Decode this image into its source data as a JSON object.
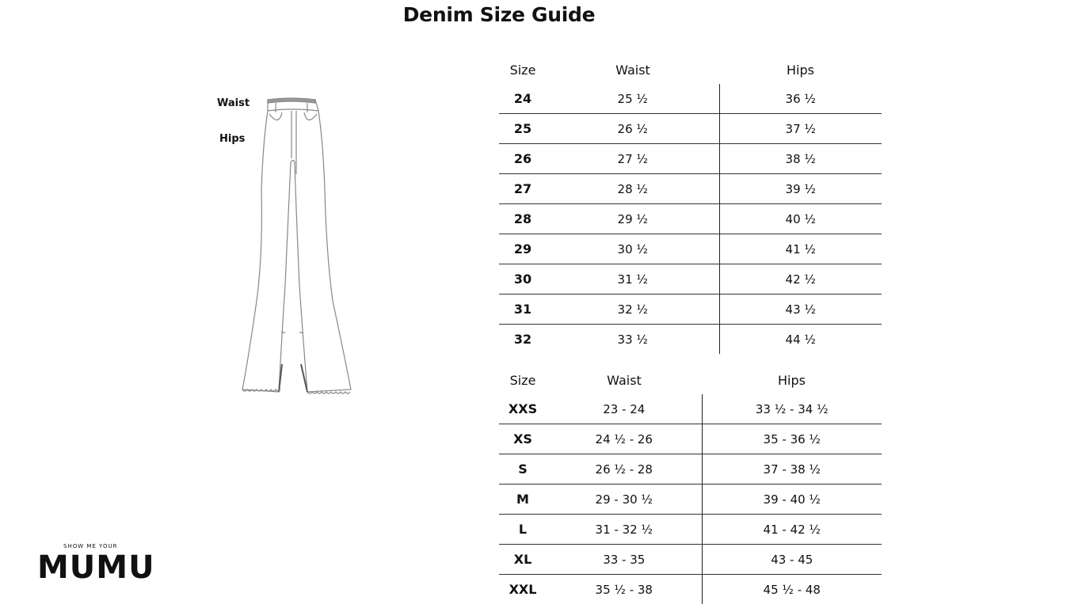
{
  "title": "Denim Size Guide",
  "diagram": {
    "waist_label": "Waist",
    "hips_label": "Hips",
    "icon": "flare-jeans-illustration"
  },
  "numeric_table": {
    "headers": [
      "Size",
      "Waist",
      "Hips"
    ],
    "rows": [
      [
        "24",
        "25 ½",
        "36 ½"
      ],
      [
        "25",
        "26 ½",
        "37 ½"
      ],
      [
        "26",
        "27 ½",
        "38 ½"
      ],
      [
        "27",
        "28 ½",
        "39 ½"
      ],
      [
        "28",
        "29 ½",
        "40 ½"
      ],
      [
        "29",
        "30 ½",
        "41 ½"
      ],
      [
        "30",
        "31 ½",
        "42 ½"
      ],
      [
        "31",
        "32 ½",
        "43 ½"
      ],
      [
        "32",
        "33 ½",
        "44 ½"
      ]
    ]
  },
  "letter_table": {
    "headers": [
      "Size",
      "Waist",
      "Hips"
    ],
    "rows": [
      [
        "XXS",
        "23 - 24",
        "33 ½ - 34 ½"
      ],
      [
        "XS",
        "24 ½ - 26",
        "35 - 36 ½"
      ],
      [
        "S",
        "26 ½ - 28",
        "37 - 38 ½"
      ],
      [
        "M",
        "29 - 30 ½",
        "39 - 40 ½"
      ],
      [
        "L",
        "31 - 32 ½",
        "41 - 42 ½"
      ],
      [
        "XL",
        "33 - 35",
        "43 - 45"
      ],
      [
        "XXL",
        "35 ½ - 38",
        "45 ½ - 48"
      ]
    ]
  },
  "logo": {
    "small": "SHOW ME YOUR",
    "big": "MUMU"
  }
}
